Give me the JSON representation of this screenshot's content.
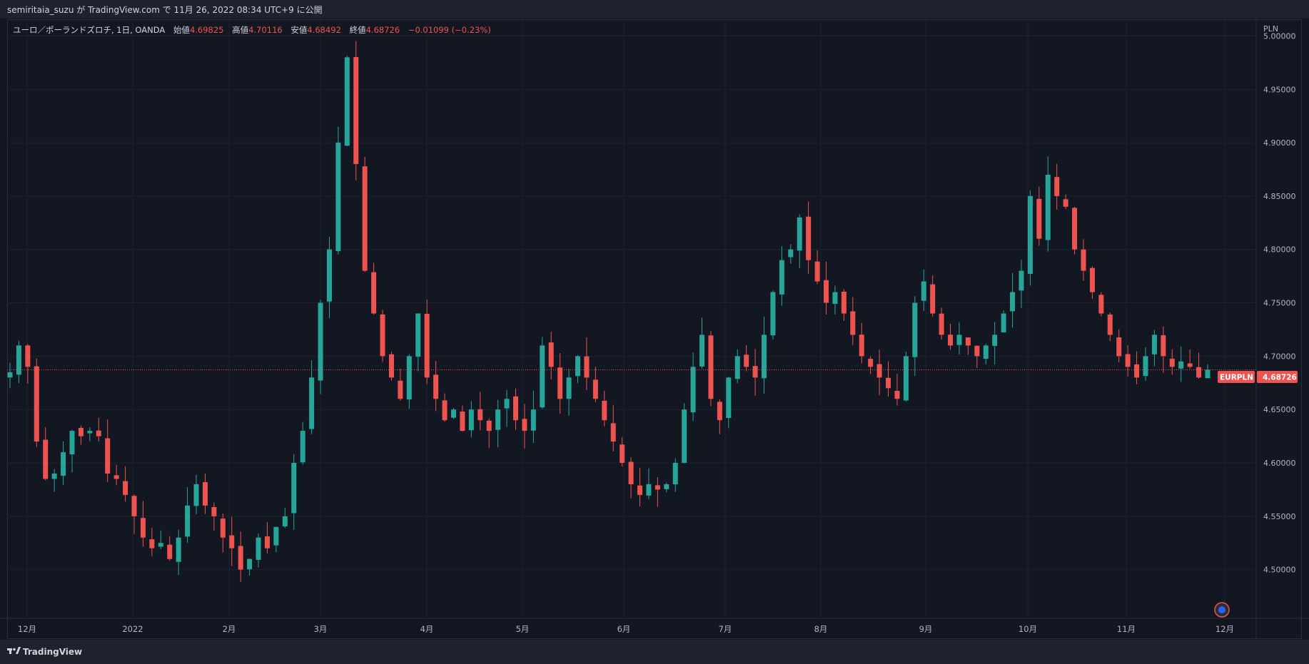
{
  "header": {
    "published": "semiritaia_suzu が TradingView.com で 11月 26, 2022 08:34 UTC+9 に公開"
  },
  "legend": {
    "symbol": "ユーロ／ポーランドズロチ, 1日, OANDA",
    "open_label": "始値",
    "open": "4.69825",
    "high_label": "高値",
    "high": "4.70116",
    "low_label": "安値",
    "low": "4.68492",
    "close_label": "終値",
    "close": "4.68726",
    "change": "−0.01099 (−0.23%)"
  },
  "price_axis": {
    "currency": "PLN",
    "ticks": [
      "5.00000",
      "4.95000",
      "4.90000",
      "4.85000",
      "4.80000",
      "4.75000",
      "4.70000",
      "4.65000",
      "4.60000",
      "4.55000",
      "4.50000"
    ]
  },
  "last_price": {
    "symbol": "EURPLN",
    "value": "4.68726"
  },
  "time_axis": {
    "ticks": [
      "12月",
      "2022",
      "2月",
      "3月",
      "4月",
      "5月",
      "6月",
      "7月",
      "8月",
      "9月",
      "10月",
      "11月",
      "12月"
    ]
  },
  "footer": {
    "brand": "TradingView"
  },
  "colors": {
    "background": "#131722",
    "up": "#26a69a",
    "down": "#ef5350",
    "grid": "#1f2330",
    "text": "#b2b5be"
  },
  "chart_data": {
    "type": "candlestick",
    "symbol": "EURPLN",
    "ylabel": "PLN",
    "ylim": [
      4.455,
      5.015
    ],
    "last_price": 4.68726,
    "months": [
      "12月",
      "2022",
      "2月",
      "3月",
      "4月",
      "5月",
      "6月",
      "7月",
      "8月",
      "9月",
      "10月",
      "11月",
      "12月"
    ],
    "closes": [
      4.685,
      4.71,
      4.69,
      4.62,
      4.585,
      4.59,
      4.61,
      4.63,
      4.625,
      4.63,
      4.625,
      4.59,
      4.585,
      4.57,
      4.55,
      4.53,
      4.52,
      4.525,
      4.51,
      4.53,
      4.56,
      4.58,
      4.56,
      4.55,
      4.53,
      4.52,
      4.5,
      4.51,
      4.53,
      4.52,
      4.54,
      4.55,
      4.6,
      4.63,
      4.68,
      4.75,
      4.8,
      4.9,
      4.98,
      4.88,
      4.78,
      4.74,
      4.7,
      4.68,
      4.66,
      4.7,
      4.74,
      4.68,
      4.66,
      4.64,
      4.65,
      4.63,
      4.65,
      4.64,
      4.63,
      4.65,
      4.66,
      4.64,
      4.63,
      4.65,
      4.71,
      4.69,
      4.66,
      4.68,
      4.7,
      4.68,
      4.66,
      4.64,
      4.62,
      4.6,
      4.58,
      4.57,
      4.58,
      4.575,
      4.58,
      4.6,
      4.65,
      4.69,
      4.72,
      4.66,
      4.64,
      4.68,
      4.7,
      4.69,
      4.68,
      4.72,
      4.76,
      4.79,
      4.8,
      4.83,
      4.79,
      4.77,
      4.75,
      4.76,
      4.74,
      4.72,
      4.7,
      4.69,
      4.68,
      4.67,
      4.66,
      4.7,
      4.75,
      4.77,
      4.74,
      4.72,
      4.71,
      4.72,
      4.71,
      4.7,
      4.71,
      4.72,
      4.74,
      4.76,
      4.78,
      4.85,
      4.81,
      4.87,
      4.85,
      4.84,
      4.8,
      4.78,
      4.76,
      4.74,
      4.72,
      4.7,
      4.69,
      4.68,
      4.7,
      4.72,
      4.7,
      4.69,
      4.695,
      4.69,
      4.68,
      4.68726
    ],
    "x_axis_ticks": [
      "12月",
      "2022",
      "2月",
      "3月",
      "4月",
      "5月",
      "6月",
      "7月",
      "8月",
      "9月",
      "10月",
      "11月",
      "12月"
    ]
  }
}
